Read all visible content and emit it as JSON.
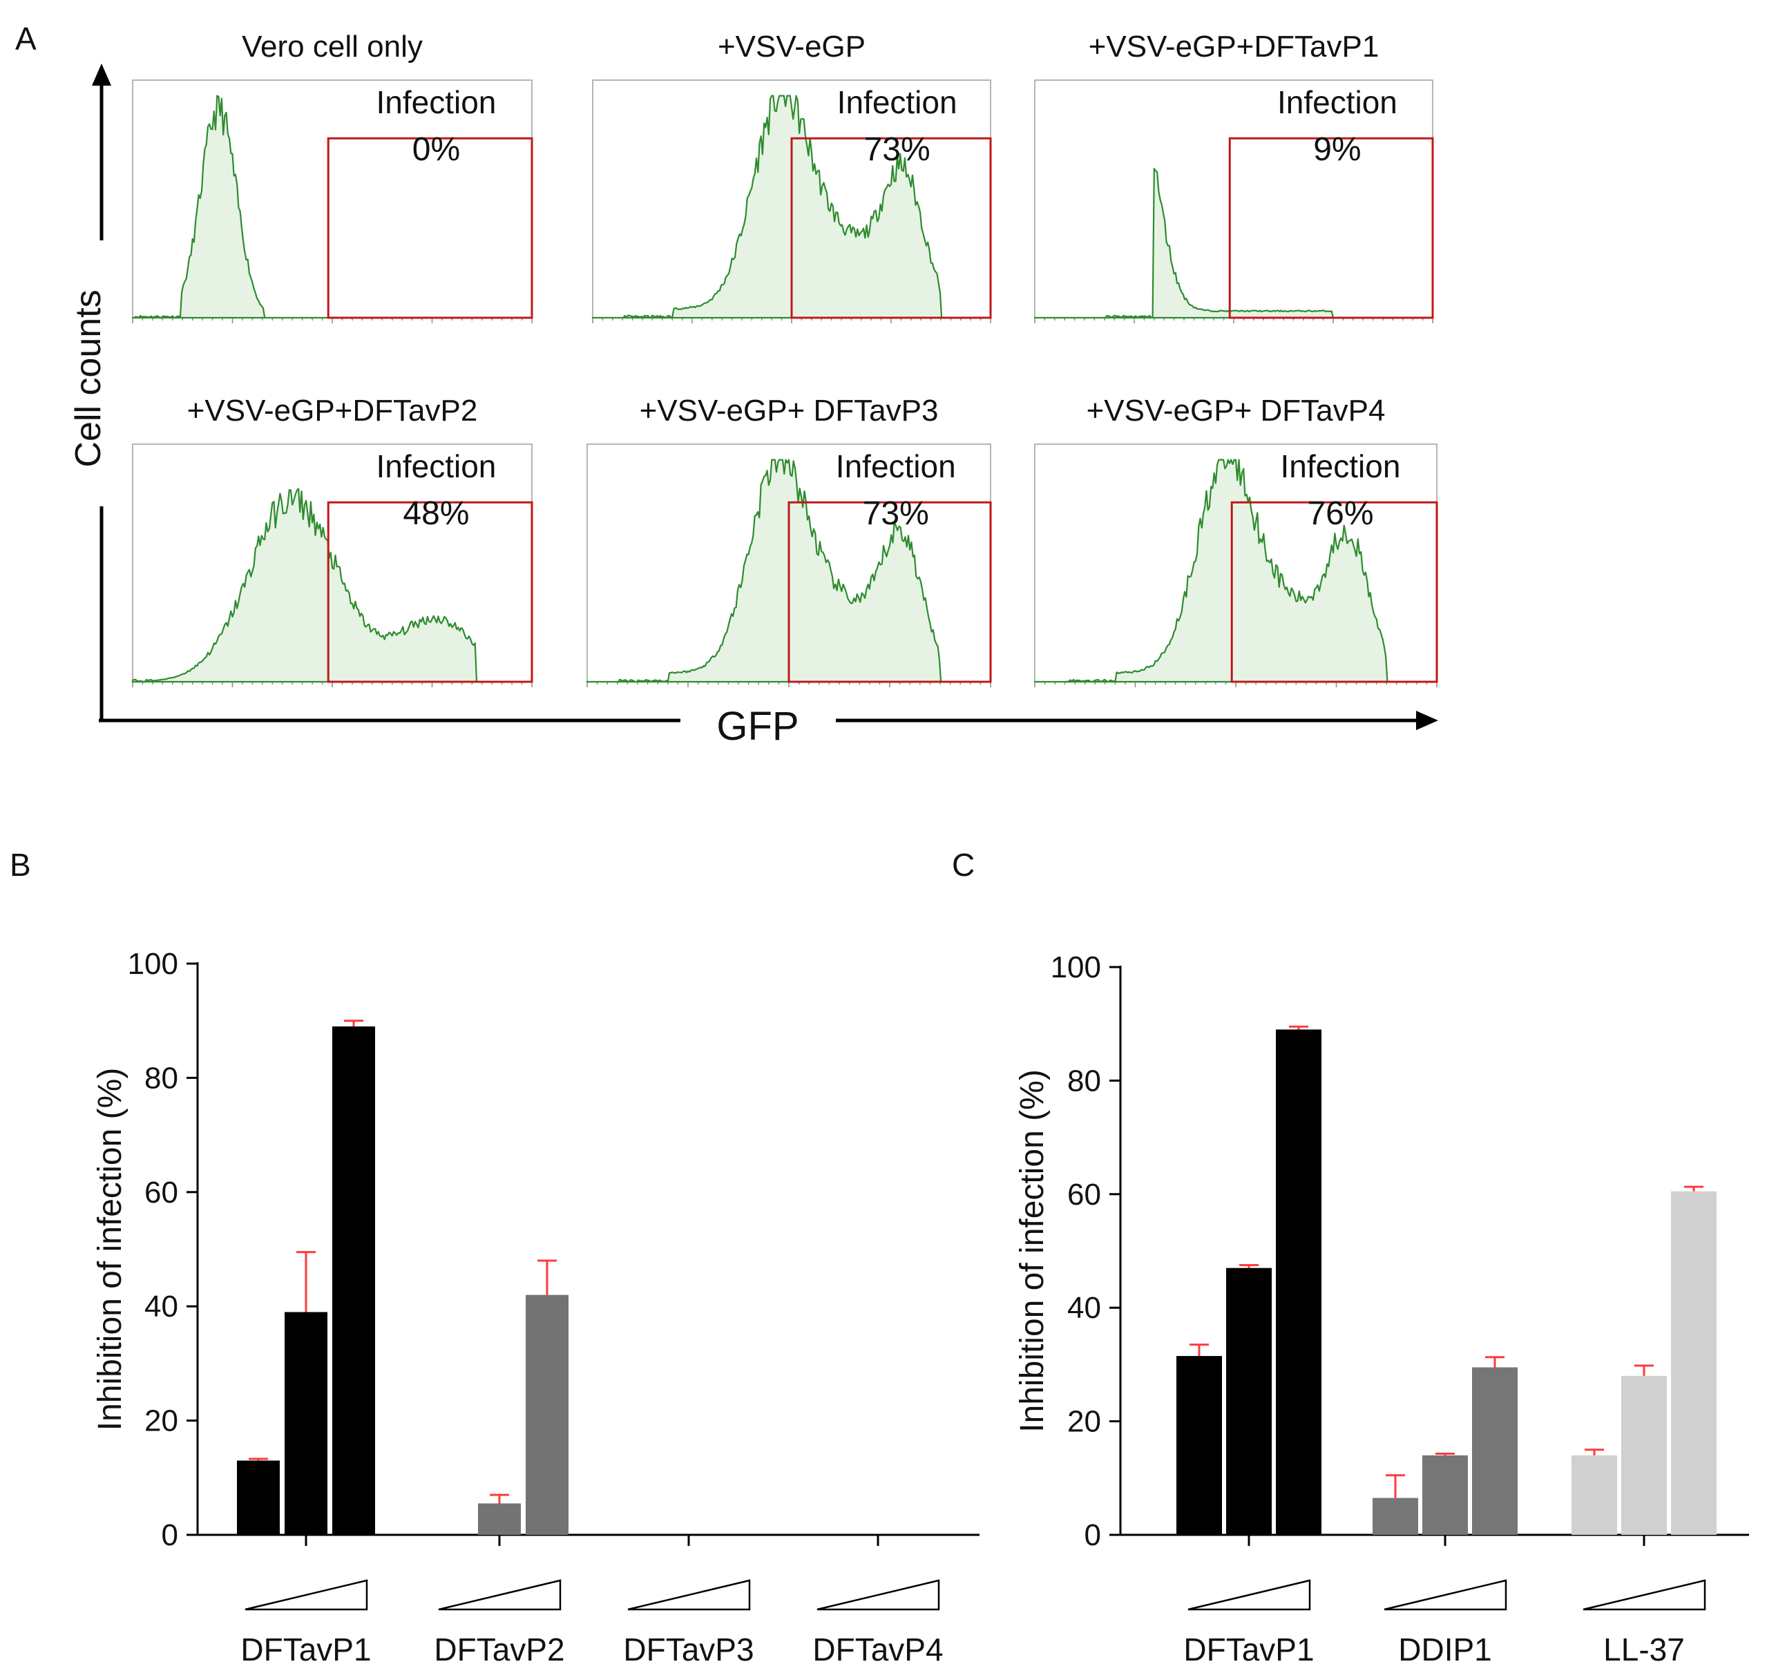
{
  "chart_data": [
    {
      "panel": "A",
      "type": "histogram",
      "xlabel": "GFP",
      "ylabel": "Cell counts",
      "gate_label": "Infection",
      "colors": {
        "fill": "#e6f3e4",
        "line": "#2e8b2e",
        "gate": "#c0181a",
        "frame": "#b5b5b5"
      },
      "histograms": [
        {
          "title": "Vero cell only",
          "infection": "0%",
          "shape": "single"
        },
        {
          "title": "+VSV-eGP",
          "infection": "73%",
          "shape": "bimodal"
        },
        {
          "title": "+VSV-eGP+DFTavP1",
          "infection": "9%",
          "shape": "single_tail"
        },
        {
          "title": "+VSV-eGP+DFTavP2",
          "infection": "48%",
          "shape": "broad"
        },
        {
          "title": "+VSV-eGP+ DFTavP3",
          "infection": "73%",
          "shape": "bimodal"
        },
        {
          "title": "+VSV-eGP+ DFTavP4",
          "infection": "76%",
          "shape": "bimodal"
        }
      ]
    },
    {
      "panel": "B",
      "type": "bar",
      "ylabel": "Inhibition of infection (%)",
      "ylim": [
        0,
        100
      ],
      "yticks": [
        "0",
        "20",
        "40",
        "60",
        "80",
        "100"
      ],
      "error_color": "#ff3b3b",
      "groups": [
        {
          "label": "DFTavP1",
          "color": "#000000",
          "values": [
            13,
            39,
            89
          ],
          "errors": [
            0.3,
            10.5,
            1.0
          ]
        },
        {
          "label": "DFTavP2",
          "color": "#737373",
          "values": [
            0,
            5.5,
            42
          ],
          "errors": [
            0,
            1.5,
            6.0
          ]
        },
        {
          "label": "DFTavP3",
          "color": "#737373",
          "values": [
            0,
            0,
            0
          ],
          "errors": [
            0,
            0,
            0
          ]
        },
        {
          "label": "DFTavP4",
          "color": "#737373",
          "values": [
            0,
            0,
            0
          ],
          "errors": [
            0,
            0,
            0
          ]
        }
      ]
    },
    {
      "panel": "C",
      "type": "bar",
      "ylabel": "Inhibition of infection (%)",
      "ylim": [
        0,
        100
      ],
      "yticks": [
        "0",
        "20",
        "40",
        "60",
        "80",
        "100"
      ],
      "error_color": "#ff3b3b",
      "groups": [
        {
          "label": "DFTavP1",
          "color": "#000000",
          "values": [
            31.5,
            47,
            89
          ],
          "errors": [
            2.0,
            0.5,
            0.5
          ]
        },
        {
          "label": "DDIP1",
          "color": "#767676",
          "values": [
            6.5,
            14,
            29.5
          ],
          "errors": [
            4.0,
            0.3,
            1.8
          ]
        },
        {
          "label": "LL-37",
          "color": "#d0d0d0",
          "values": [
            14,
            28,
            60.5
          ],
          "errors": [
            1.0,
            1.8,
            0.8
          ]
        }
      ]
    }
  ]
}
